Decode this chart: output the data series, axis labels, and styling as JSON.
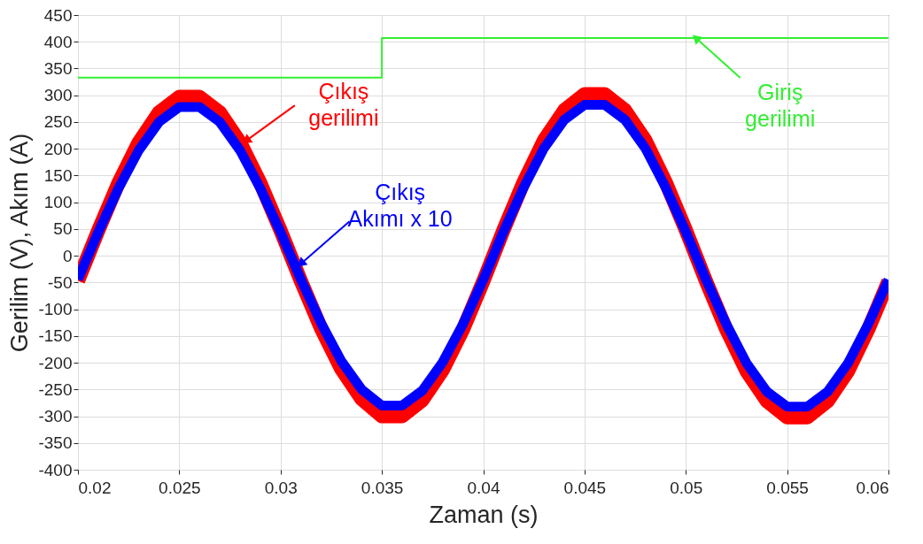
{
  "chart_data": {
    "type": "line",
    "xlabel": "Zaman (s)",
    "ylabel": "Gerilim (V), Akım (A)",
    "xlim": [
      0.02,
      0.06
    ],
    "xticks": [
      0.02,
      0.025,
      0.03,
      0.035,
      0.04,
      0.045,
      0.05,
      0.055,
      0.06
    ],
    "ylim": [
      -400,
      450
    ],
    "yticks": [
      -400,
      -350,
      -300,
      -250,
      -200,
      -150,
      -100,
      -50,
      0,
      50,
      100,
      150,
      200,
      250,
      300,
      350,
      400,
      450
    ],
    "grid": true,
    "series": [
      {
        "color": "#ff0000",
        "x": [
          0.02,
          0.021,
          0.022,
          0.023,
          0.024,
          0.025,
          0.026,
          0.027,
          0.028,
          0.029,
          0.03,
          0.031,
          0.032,
          0.033,
          0.034,
          0.035,
          0.036,
          0.037,
          0.038,
          0.039,
          0.04,
          0.041,
          0.042,
          0.043,
          0.044,
          0.045,
          0.046,
          0.047,
          0.048,
          0.049,
          0.05,
          0.051,
          0.052,
          0.053,
          0.054,
          0.055,
          0.056,
          0.057,
          0.058,
          0.059,
          0.06
        ],
        "values": [
          -47,
          47,
          136,
          212,
          268,
          297,
          297,
          268,
          212,
          136,
          47,
          -47,
          -136,
          -212,
          -268,
          -300,
          -300,
          -270,
          -214,
          -138,
          -48,
          48,
          138,
          216,
          272,
          302,
          302,
          272,
          216,
          138,
          48,
          -48,
          -138,
          -216,
          -272,
          -302,
          -302,
          -272,
          -216,
          -138,
          -48
        ]
      },
      {
        "color": "#0000ff",
        "x": [
          0.02,
          0.021,
          0.022,
          0.023,
          0.024,
          0.025,
          0.026,
          0.027,
          0.028,
          0.029,
          0.03,
          0.031,
          0.032,
          0.033,
          0.034,
          0.035,
          0.036,
          0.037,
          0.038,
          0.039,
          0.04,
          0.041,
          0.042,
          0.043,
          0.044,
          0.045,
          0.046,
          0.047,
          0.048,
          0.049,
          0.05,
          0.051,
          0.052,
          0.053,
          0.054,
          0.055,
          0.056,
          0.057,
          0.058,
          0.059,
          0.06
        ],
        "values": [
          -44,
          44,
          126,
          197,
          250,
          278,
          278,
          250,
          197,
          126,
          44,
          -44,
          -126,
          -197,
          -250,
          -280,
          -280,
          -252,
          -199,
          -128,
          -45,
          45,
          128,
          201,
          254,
          282,
          282,
          254,
          201,
          128,
          45,
          -45,
          -128,
          -201,
          -254,
          -282,
          -282,
          -254,
          -201,
          -128,
          -45
        ]
      },
      {
        "type": "step",
        "color": "#33ee33",
        "x": [
          0.02,
          0.035,
          0.06
        ],
        "values": [
          333,
          407,
          407
        ]
      }
    ],
    "annotations": [
      {
        "text": "Çıkış\ngerilimi",
        "x": 0.0283,
        "y": 215
      },
      {
        "text": "Çıkış\nAkımı x 10",
        "x": 0.031,
        "y": -15
      },
      {
        "text": "Giriş\ngerilimi",
        "x": 0.0505,
        "y": 407
      }
    ]
  }
}
